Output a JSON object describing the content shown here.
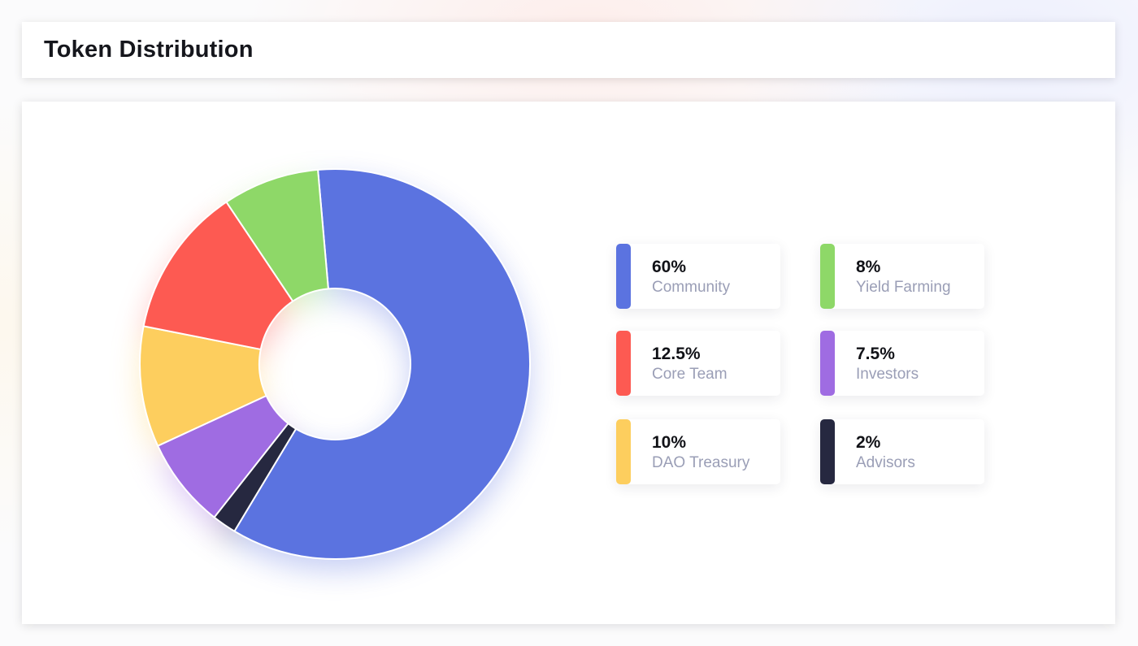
{
  "header": {
    "title": "Token Distribution"
  },
  "chart_data": {
    "type": "pie",
    "donut": true,
    "slices": [
      {
        "label": "Community",
        "value": 60,
        "value_text": "60%",
        "color": "#5b73e0"
      },
      {
        "label": "Advisors",
        "value": 2,
        "value_text": "2%",
        "color": "#262840"
      },
      {
        "label": "Investors",
        "value": 7.5,
        "value_text": "7.5%",
        "color": "#9f6ce2"
      },
      {
        "label": "DAO Treasury",
        "value": 10,
        "value_text": "10%",
        "color": "#fdce5e"
      },
      {
        "label": "Core Team",
        "value": 12.5,
        "value_text": "12.5%",
        "color": "#fd5a52"
      },
      {
        "label": "Yield Farming",
        "value": 8,
        "value_text": "8%",
        "color": "#8ed868"
      }
    ]
  },
  "legend": [
    {
      "pct": "60%",
      "label": "Community",
      "color": "#5b73e0"
    },
    {
      "pct": "8%",
      "label": "Yield Farming",
      "color": "#8ed868"
    },
    {
      "pct": "12.5%",
      "label": "Core Team",
      "color": "#fd5a52"
    },
    {
      "pct": "7.5%",
      "label": "Investors",
      "color": "#9f6ce2"
    },
    {
      "pct": "10%",
      "label": "DAO Treasury",
      "color": "#fdce5e"
    },
    {
      "pct": "2%",
      "label": "Advisors",
      "color": "#262840"
    }
  ]
}
